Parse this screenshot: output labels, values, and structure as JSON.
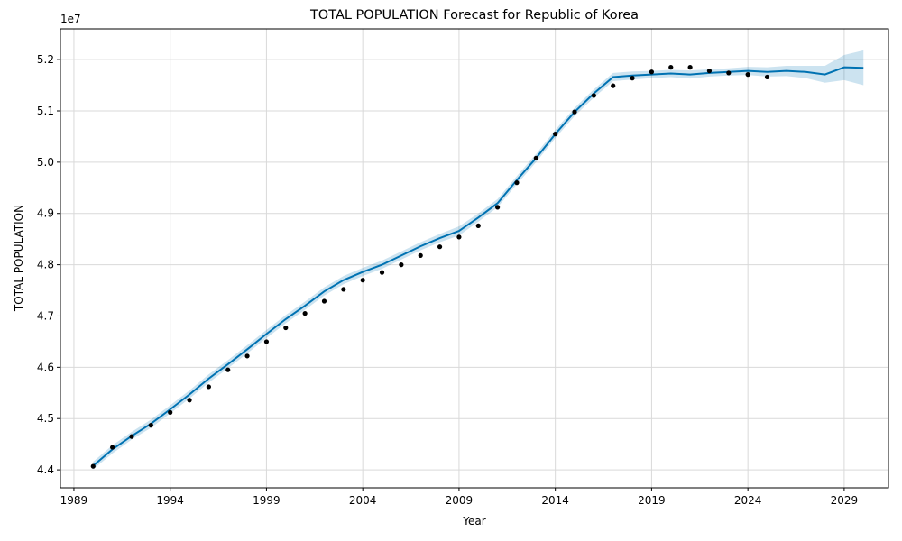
{
  "chart_data": {
    "type": "line",
    "title": "TOTAL POPULATION Forecast for Republic of Korea",
    "xlabel": "Year",
    "ylabel": "TOTAL POPULATION",
    "y_offset_label": "1e7",
    "y_scale_factor": 10000000,
    "xlim": [
      1988.3,
      2031.3
    ],
    "ylim": [
      4.365,
      5.26
    ],
    "x_ticks": [
      1989,
      1994,
      1999,
      2004,
      2009,
      2014,
      2019,
      2024,
      2029
    ],
    "x_tick_labels": [
      "1989",
      "1994",
      "1999",
      "2004",
      "2009",
      "2014",
      "2019",
      "2024",
      "2029"
    ],
    "y_ticks": [
      4.4,
      4.5,
      4.6,
      4.7,
      4.8,
      4.9,
      5.0,
      5.1,
      5.2
    ],
    "y_tick_labels": [
      "4.4",
      "4.5",
      "4.6",
      "4.7",
      "4.8",
      "4.9",
      "5.0",
      "5.1",
      "5.2"
    ],
    "grid": true,
    "colors": {
      "forecast": "#0072B2",
      "band": "#0072B2",
      "observed": "#000000",
      "grid": "#d9d9d9"
    },
    "series": [
      {
        "name": "",
        "kind": "forecast",
        "x": [
          1990,
          1991,
          1992,
          1993,
          1994,
          1995,
          1996,
          1997,
          1998,
          1999,
          2000,
          2001,
          2002,
          2003,
          2004,
          2005,
          2006,
          2007,
          2008,
          2009,
          2010,
          2011,
          2012,
          2013,
          2014,
          2015,
          2016,
          2017,
          2018,
          2019,
          2020,
          2021,
          2022,
          2023,
          2024,
          2025,
          2026,
          2027,
          2028,
          2029,
          2030
        ],
        "y": [
          4.408,
          4.44,
          4.466,
          4.49,
          4.518,
          4.547,
          4.578,
          4.606,
          4.635,
          4.665,
          4.694,
          4.72,
          4.748,
          4.77,
          4.786,
          4.8,
          4.818,
          4.836,
          4.852,
          4.866,
          4.892,
          4.92,
          4.965,
          5.008,
          5.055,
          5.098,
          5.134,
          5.166,
          5.169,
          5.171,
          5.173,
          5.171,
          5.174,
          5.176,
          5.178,
          5.176,
          5.178,
          5.176,
          5.171,
          5.185,
          5.184
        ],
        "y_lower": [
          4.401,
          4.432,
          4.459,
          4.482,
          4.51,
          4.539,
          4.57,
          4.598,
          4.627,
          4.657,
          4.686,
          4.712,
          4.74,
          4.762,
          4.778,
          4.792,
          4.81,
          4.828,
          4.844,
          4.857,
          4.884,
          4.912,
          4.957,
          5.0,
          5.047,
          5.09,
          5.126,
          5.158,
          5.161,
          5.164,
          5.166,
          5.163,
          5.167,
          5.169,
          5.17,
          5.167,
          5.168,
          5.164,
          5.155,
          5.16,
          5.15
        ],
        "y_upper": [
          4.416,
          4.448,
          4.474,
          4.498,
          4.526,
          4.555,
          4.586,
          4.614,
          4.643,
          4.673,
          4.702,
          4.728,
          4.756,
          4.778,
          4.794,
          4.808,
          4.826,
          4.844,
          4.86,
          4.875,
          4.9,
          4.928,
          4.973,
          5.016,
          5.063,
          5.106,
          5.142,
          5.174,
          5.177,
          5.178,
          5.18,
          5.179,
          5.181,
          5.183,
          5.186,
          5.185,
          5.188,
          5.188,
          5.188,
          5.209,
          5.218
        ]
      },
      {
        "name": "",
        "kind": "observed",
        "x": [
          1990,
          1991,
          1992,
          1993,
          1994,
          1995,
          1996,
          1997,
          1998,
          1999,
          2000,
          2001,
          2002,
          2003,
          2004,
          2005,
          2006,
          2007,
          2008,
          2009,
          2010,
          2011,
          2012,
          2013,
          2014,
          2015,
          2016,
          2017,
          2018,
          2019,
          2020,
          2021,
          2022,
          2023,
          2024,
          2025
        ],
        "y": [
          4.407,
          4.444,
          4.465,
          4.487,
          4.512,
          4.536,
          4.562,
          4.595,
          4.622,
          4.65,
          4.677,
          4.705,
          4.729,
          4.752,
          4.77,
          4.785,
          4.8,
          4.818,
          4.835,
          4.854,
          4.876,
          4.912,
          4.96,
          5.008,
          5.055,
          5.098,
          5.13,
          5.149,
          5.164,
          5.176,
          5.185,
          5.185,
          5.178,
          5.174,
          5.171,
          5.166
        ]
      }
    ]
  }
}
